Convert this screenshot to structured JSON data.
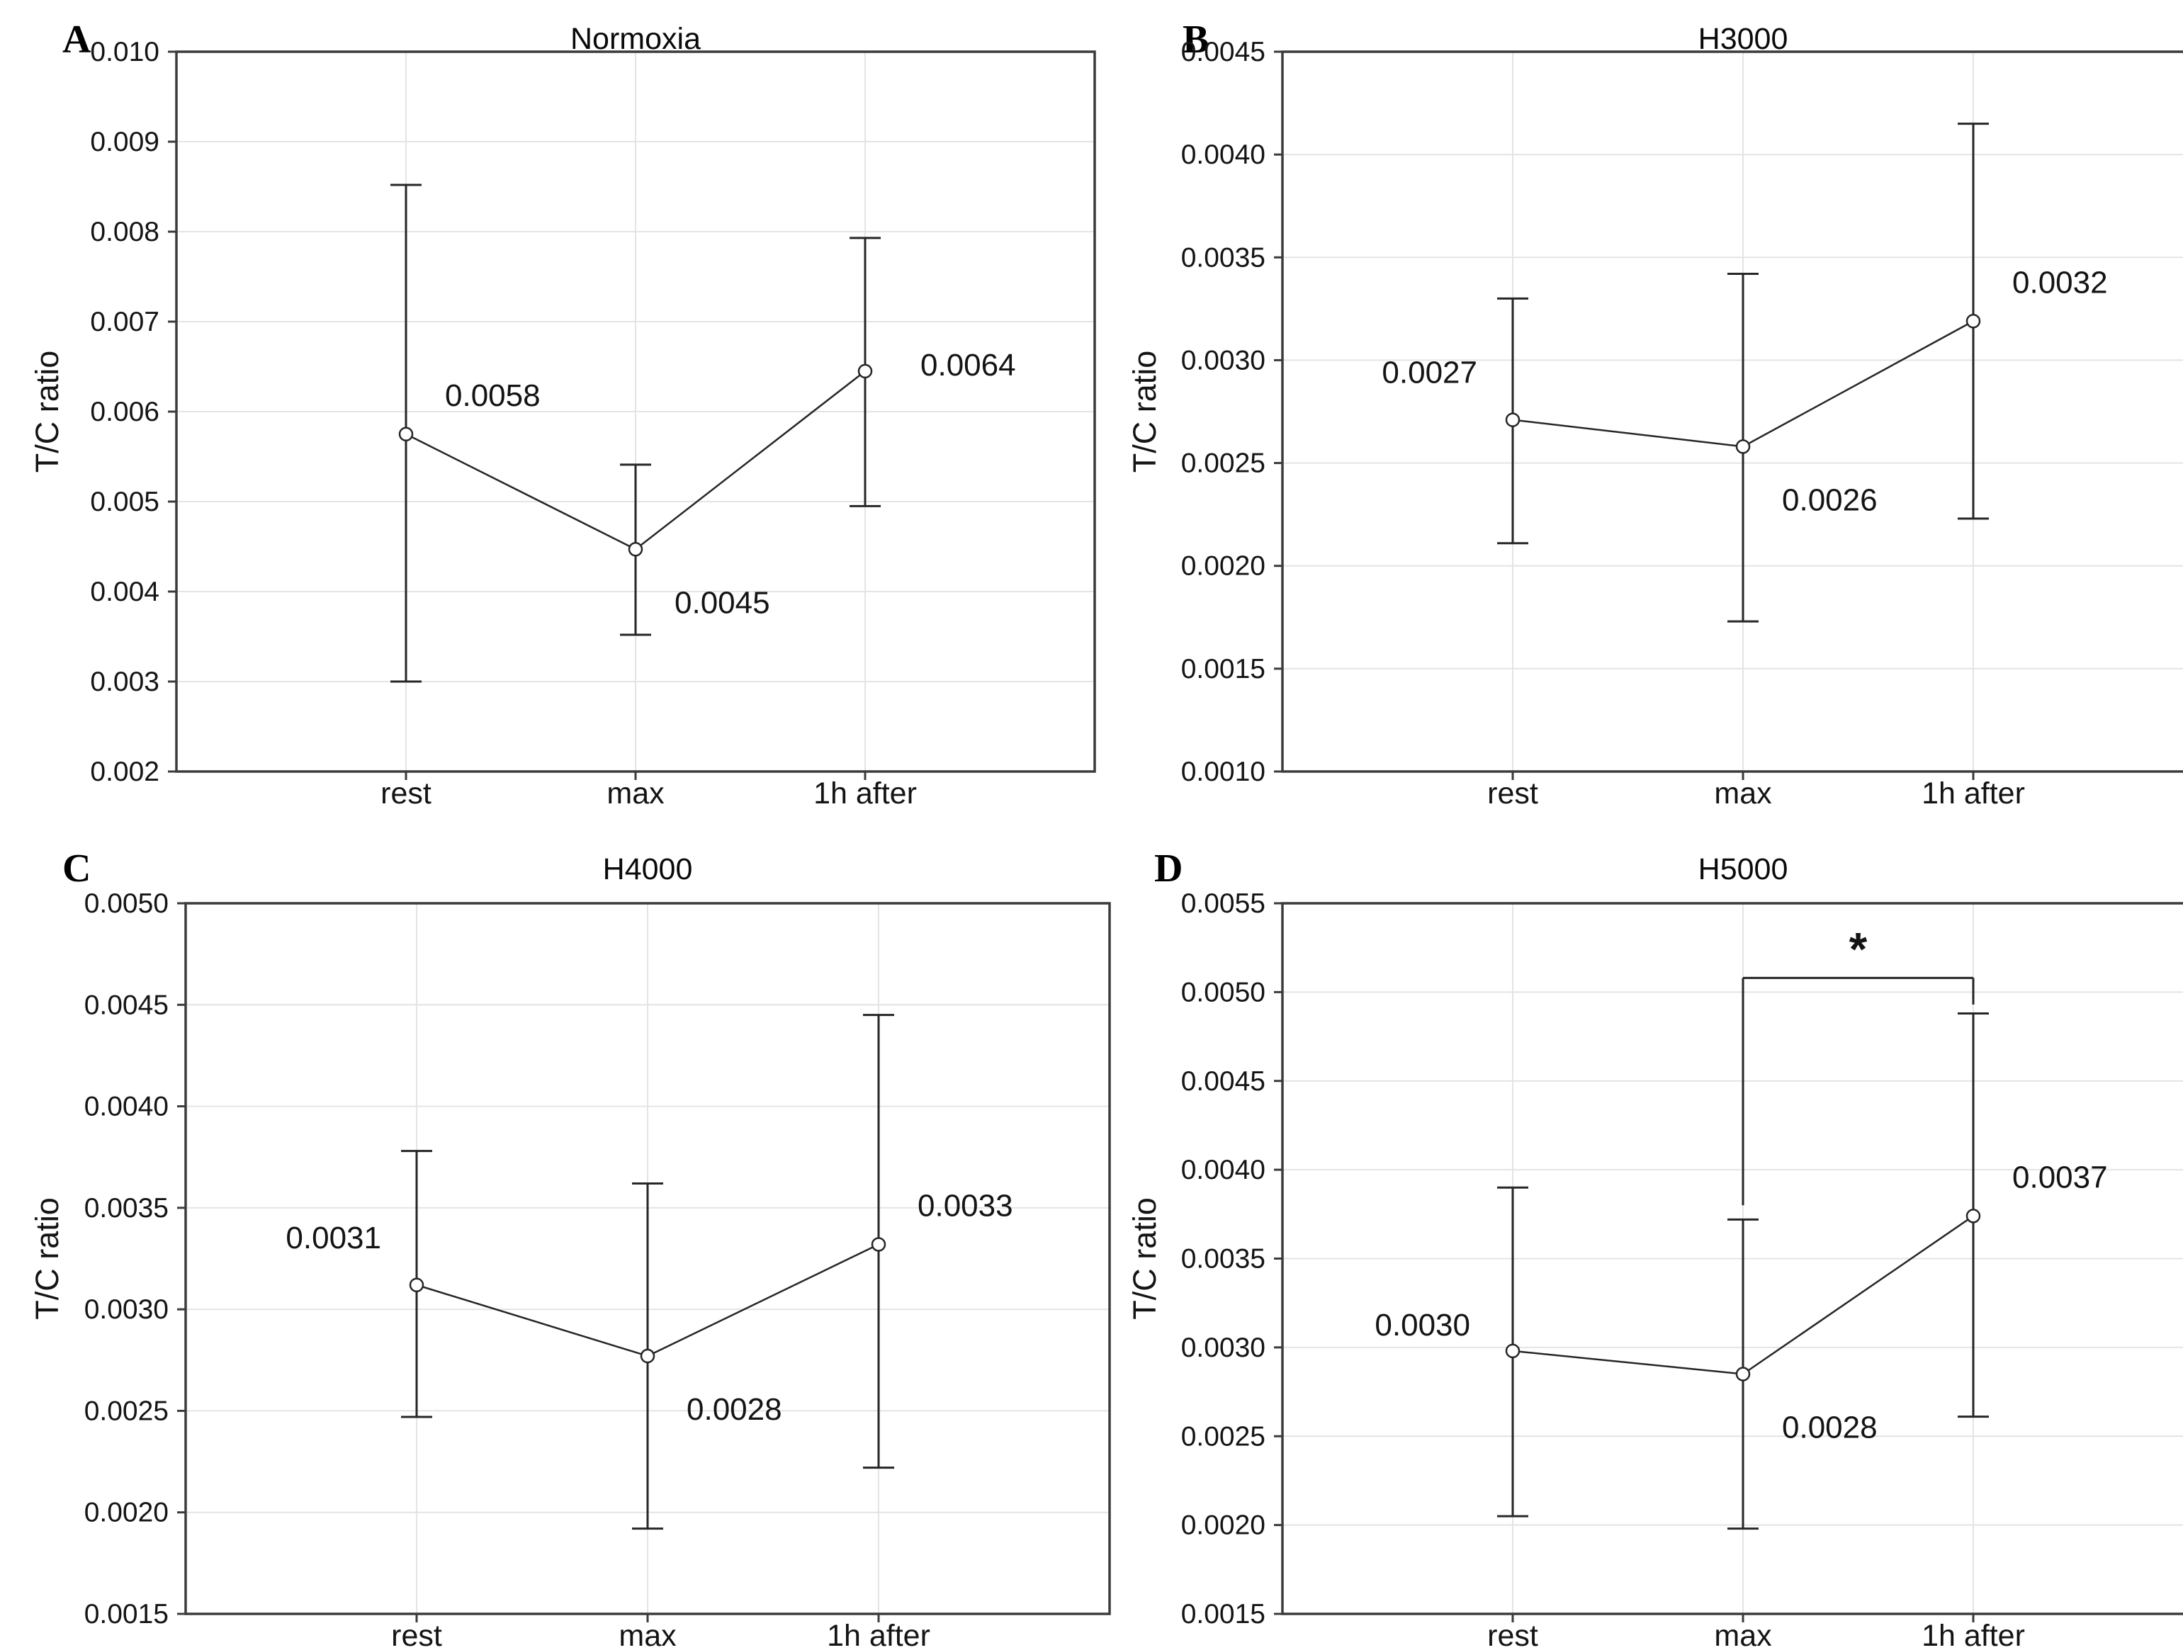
{
  "figure": {
    "background": "#ffffff",
    "axis_color": "#3b3b3b",
    "grid_color": "#e4e4e4",
    "line_color": "#262626",
    "text_color": "#141414",
    "marker": "open-circle",
    "y_axis_title": "T/C ratio"
  },
  "chart_data": [
    {
      "type": "line",
      "panel_label": "A",
      "title": "Normoxia",
      "ylabel": "T/C ratio",
      "xlabel": "",
      "categories": [
        "rest",
        "max",
        "1h after"
      ],
      "ylim": [
        0.002,
        0.01
      ],
      "ytick_step": 0.001,
      "ytick_decimals": 3,
      "grid": true,
      "legend": "none",
      "series": [
        {
          "name": "T/C ratio",
          "means": [
            0.00575,
            0.00447,
            0.00645
          ],
          "err_low": [
            0.003,
            0.00352,
            0.00495
          ],
          "err_high": [
            0.00852,
            0.00541,
            0.00793
          ],
          "point_labels": [
            "0.0058",
            "0.0045",
            "0.0064"
          ],
          "label_side": [
            "above-right",
            "below-right",
            "right"
          ]
        }
      ]
    },
    {
      "type": "line",
      "panel_label": "B",
      "title": "H3000",
      "ylabel": "T/C ratio",
      "xlabel": "",
      "categories": [
        "rest",
        "max",
        "1h after"
      ],
      "ylim": [
        0.001,
        0.0045
      ],
      "ytick_step": 0.0005,
      "ytick_decimals": 4,
      "grid": true,
      "legend": "none",
      "series": [
        {
          "name": "T/C ratio",
          "means": [
            0.00271,
            0.00258,
            0.00319
          ],
          "err_low": [
            0.00211,
            0.00173,
            0.00223
          ],
          "err_high": [
            0.0033,
            0.00342,
            0.00415
          ],
          "point_labels": [
            "0.0027",
            "0.0026",
            "0.0032"
          ],
          "label_side": [
            "above-left",
            "below-right",
            "above-right"
          ]
        }
      ]
    },
    {
      "type": "line",
      "panel_label": "C",
      "title": "H4000",
      "ylabel": "T/C ratio",
      "xlabel": "",
      "categories": [
        "rest",
        "max",
        "1h after"
      ],
      "ylim": [
        0.0015,
        0.005
      ],
      "ytick_step": 0.0005,
      "ytick_decimals": 4,
      "grid": true,
      "legend": "none",
      "series": [
        {
          "name": "T/C ratio",
          "means": [
            0.00312,
            0.00277,
            0.00332
          ],
          "err_low": [
            0.00247,
            0.00192,
            0.00222
          ],
          "err_high": [
            0.00378,
            0.00362,
            0.00445
          ],
          "point_labels": [
            "0.0031",
            "0.0028",
            "0.0033"
          ],
          "label_side": [
            "above-left",
            "below-right",
            "above-right"
          ]
        }
      ]
    },
    {
      "type": "line",
      "panel_label": "D",
      "title": "H5000",
      "ylabel": "T/C ratio",
      "xlabel": "",
      "categories": [
        "rest",
        "max",
        "1h after"
      ],
      "ylim": [
        0.0015,
        0.0055
      ],
      "ytick_step": 0.0005,
      "ytick_decimals": 4,
      "grid": true,
      "legend": "none",
      "series": [
        {
          "name": "T/C ratio",
          "means": [
            0.00298,
            0.00285,
            0.00374
          ],
          "err_low": [
            0.00205,
            0.00198,
            0.00261
          ],
          "err_high": [
            0.0039,
            0.00372,
            0.00488
          ],
          "point_labels": [
            "0.0030",
            "0.0028",
            "0.0037"
          ],
          "label_side": [
            "left",
            "below-right",
            "above-right"
          ]
        }
      ],
      "significance": {
        "label": "*",
        "between_categories": [
          "max",
          "1h after"
        ],
        "bar_y": 0.00508,
        "left_leg_bottom": 0.0038,
        "right_leg_bottom": 0.00493
      }
    }
  ]
}
